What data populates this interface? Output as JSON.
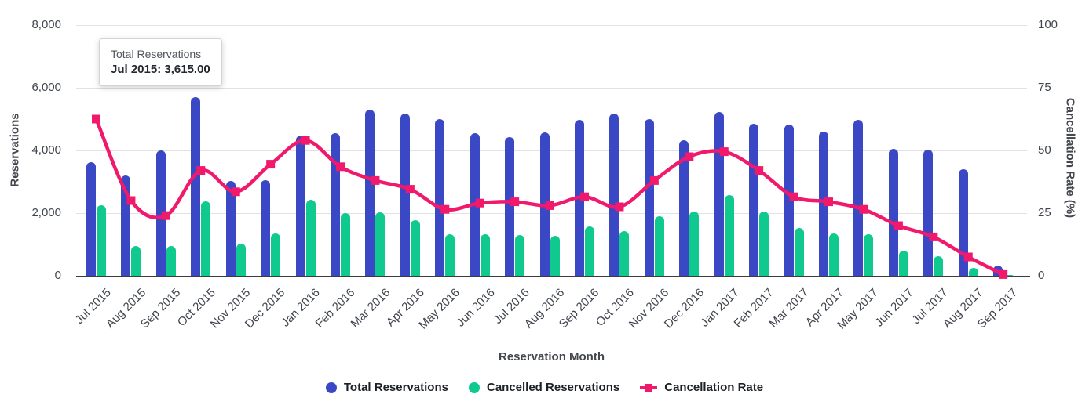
{
  "page": {
    "background": "#ffffff"
  },
  "tooltip": {
    "series": "Total Reservations",
    "value": "Jul 2015: 3,615.00"
  },
  "chart_data": {
    "type": "combo_bar_line",
    "title": "",
    "xlabel": "Reservation Month",
    "x_categories": [
      "Jul 2015",
      "Aug 2015",
      "Sep 2015",
      "Oct 2015",
      "Nov 2015",
      "Dec 2015",
      "Jan 2016",
      "Feb 2016",
      "Mar 2016",
      "Apr 2016",
      "May 2016",
      "Jun 2016",
      "Jul 2016",
      "Aug 2016",
      "Sep 2016",
      "Oct 2016",
      "Nov 2016",
      "Dec 2016",
      "Jan 2017",
      "Feb 2017",
      "Mar 2017",
      "Apr 2017",
      "May 2017",
      "Jun 2017",
      "Jul 2017",
      "Aug 2017",
      "Sep 2017"
    ],
    "left_axis": {
      "label": "Reservations",
      "ticks": [
        "8,000",
        "6,000",
        "4,000",
        "2,000",
        "0"
      ],
      "range": [
        0,
        8000
      ]
    },
    "right_axis": {
      "label": "Cancellation Rate (%)",
      "ticks": [
        "100",
        "75",
        "50",
        "25",
        "0"
      ],
      "range": [
        0,
        100
      ]
    },
    "grid": true,
    "legend_position": "bottom",
    "series": [
      {
        "name": "Total Reservations",
        "type": "bar",
        "axis": "left",
        "color": "#3b48c6",
        "values": [
          3615,
          3200,
          4000,
          5700,
          3025,
          3050,
          4475,
          4550,
          5300,
          5175,
          5000,
          4550,
          4425,
          4575,
          4975,
          5175,
          5000,
          4325,
          5225,
          4850,
          4825,
          4600,
          4975,
          4050,
          4025,
          3400,
          325
        ]
      },
      {
        "name": "Cancelled Reservations",
        "type": "bar",
        "axis": "left",
        "color": "#10c98e",
        "values": [
          2250,
          950,
          950,
          2375,
          1025,
          1350,
          2425,
          2000,
          2025,
          1775,
          1325,
          1325,
          1300,
          1275,
          1575,
          1425,
          1900,
          2050,
          2575,
          2050,
          1525,
          1350,
          1325,
          800,
          625,
          250,
          25
        ]
      },
      {
        "name": "Cancellation Rate",
        "type": "line",
        "axis": "right",
        "color": "#f1196b",
        "values": [
          62.5,
          30,
          24,
          42,
          33.5,
          44.5,
          54,
          43.5,
          38,
          34.5,
          26.5,
          29,
          29.5,
          28,
          31.5,
          27.5,
          38,
          47.5,
          49.5,
          42,
          31.5,
          29.5,
          26.5,
          20,
          15.5,
          7.5,
          0.5
        ]
      }
    ]
  }
}
